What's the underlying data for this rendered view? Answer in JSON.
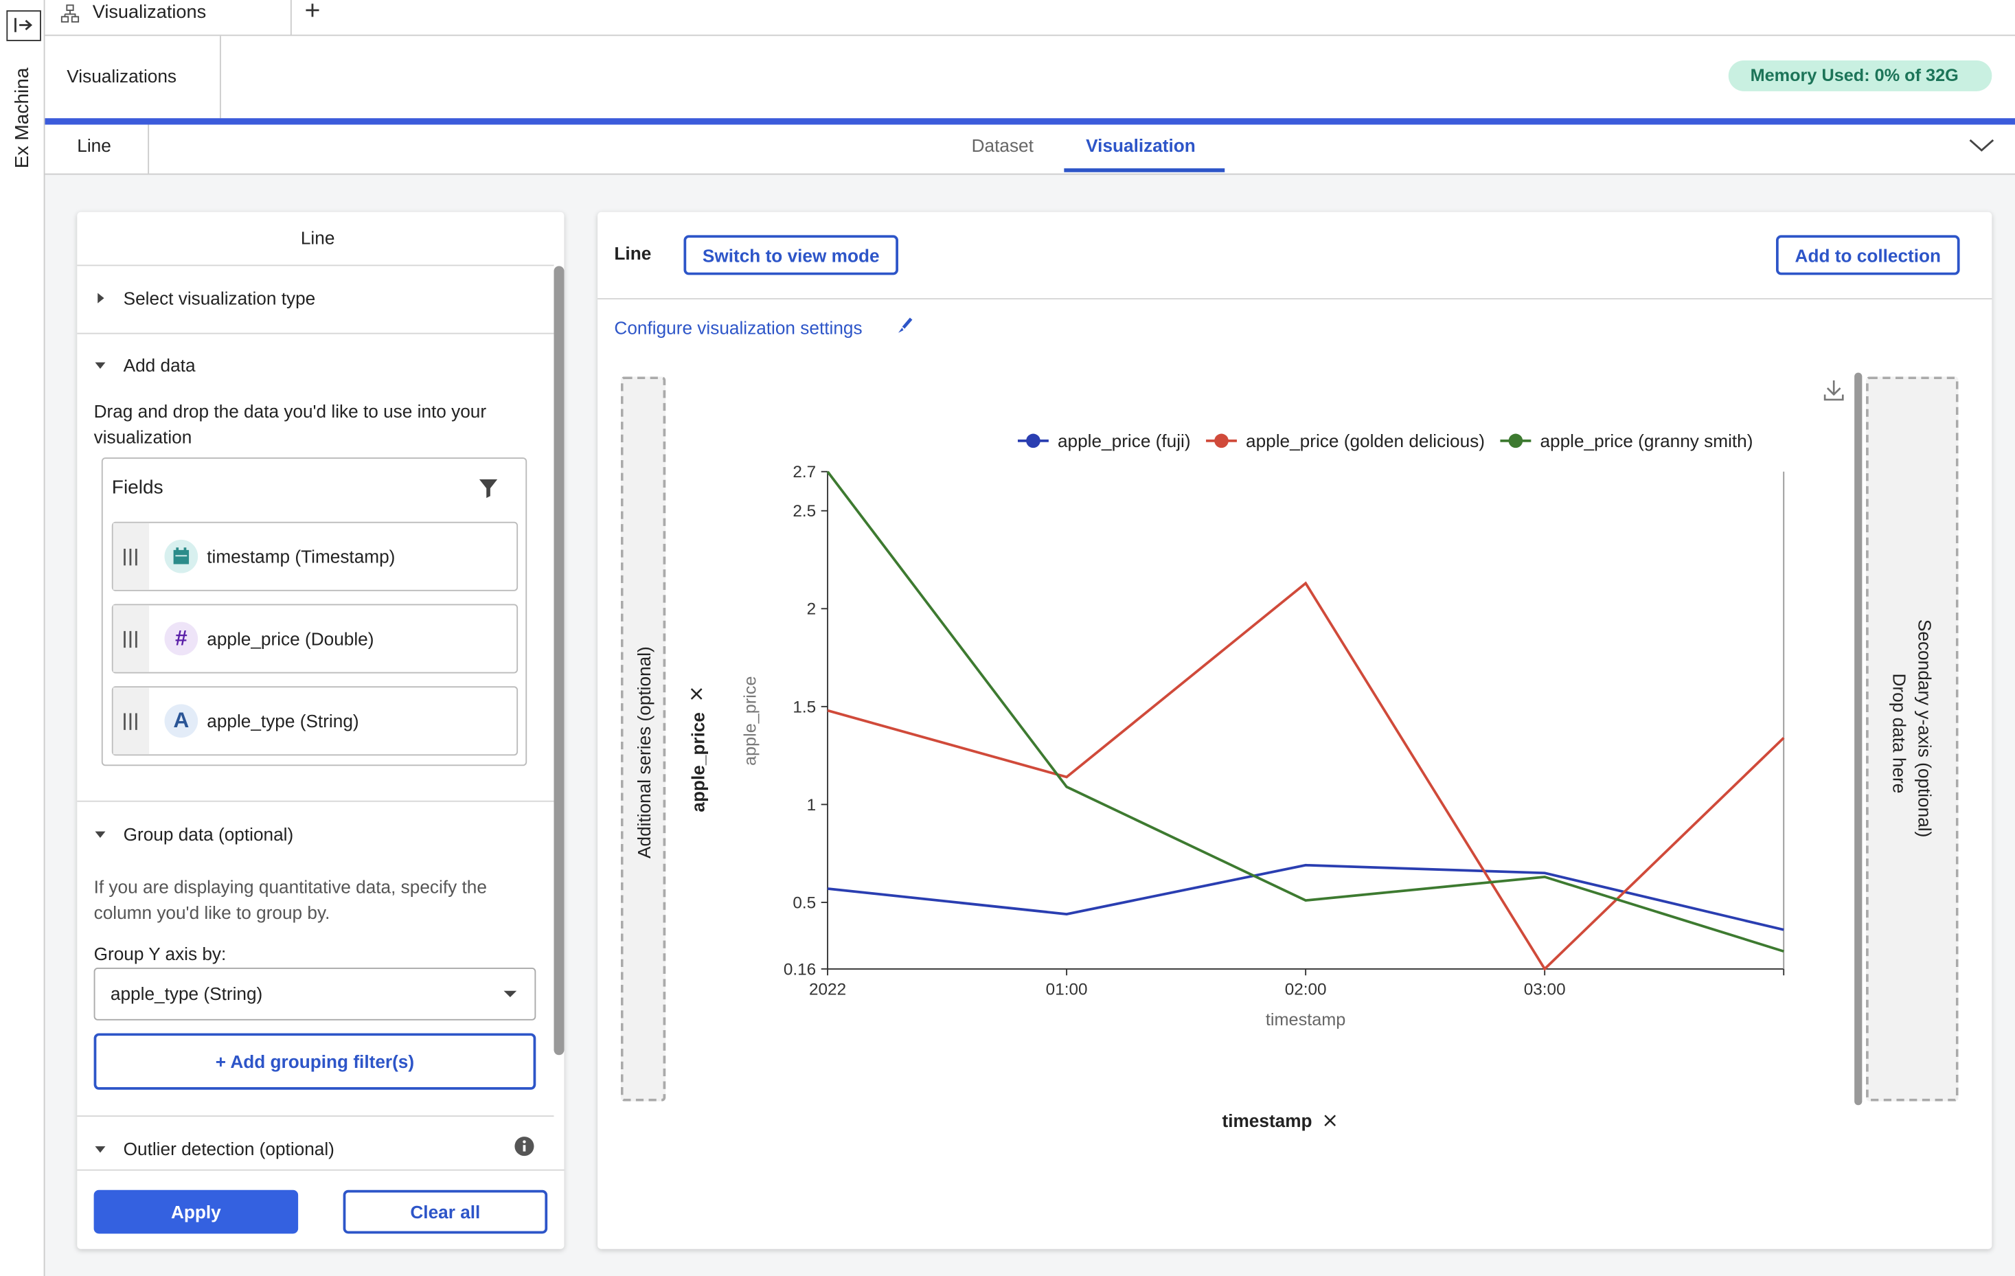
{
  "sidebar": {
    "app_name": "Ex Machina"
  },
  "tab_bar": {
    "tab": "Visualizations",
    "add": "+"
  },
  "header": {
    "title": "Visualizations",
    "memory": "Memory Used: 0% of 32G"
  },
  "subheader": {
    "name": "Line",
    "tabs": [
      "Dataset",
      "Visualization"
    ],
    "active_tab": "Visualization"
  },
  "left_panel": {
    "title": "Line",
    "select_type": "Select visualization type",
    "add_data": {
      "title": "Add data",
      "text": "Drag and drop the data you'd like to use into your visualization",
      "fields_title": "Fields",
      "fields": [
        {
          "label": "timestamp (Timestamp)"
        },
        {
          "icon": "#",
          "label": "apple_price (Double)"
        },
        {
          "icon": "A",
          "label": "apple_type (String)"
        }
      ]
    },
    "group": {
      "title": "Group data (optional)",
      "text": "If you are displaying quantitative data, specify the column you'd like to group by.",
      "group_label": "Group Y axis by:",
      "group_value": "apple_type (String)",
      "add_filter": "+ Add grouping filter(s)"
    },
    "outlier": "Outlier detection (optional)",
    "apply": "Apply",
    "clear": "Clear all"
  },
  "right_panel": {
    "title": "Line",
    "switch": "Switch to view mode",
    "add_collection": "Add to collection",
    "configure": "Configure visualization settings",
    "additional_series": "Additional series (optional)",
    "y_field": "apple_price",
    "x_field": "timestamp",
    "secondary_axis": "Secondary y-axis (optional)",
    "drop_here": "Drop data here"
  },
  "chart_data": {
    "type": "line",
    "x_label": "timestamp",
    "y_label": "apple_price",
    "categories": [
      "2022",
      "01:00",
      "02:00",
      "03:00",
      null
    ],
    "series": [
      {
        "name": "apple_price (fuji)",
        "color": "#2a3eb1",
        "values": [
          0.57,
          0.44,
          0.69,
          0.65,
          0.36
        ]
      },
      {
        "name": "apple_price (golden delicious)",
        "color": "#d04a3a",
        "values": [
          1.48,
          1.14,
          2.13,
          0.16,
          1.34
        ]
      },
      {
        "name": "apple_price (granny smith)",
        "color": "#3d7a30",
        "values": [
          2.7,
          1.09,
          0.51,
          0.63,
          0.25
        ]
      }
    ],
    "ylim": [
      0.16,
      2.7
    ],
    "yticks": [
      0.16,
      0.5,
      1,
      1.5,
      2,
      2.5,
      2.7
    ],
    "grid": false
  }
}
